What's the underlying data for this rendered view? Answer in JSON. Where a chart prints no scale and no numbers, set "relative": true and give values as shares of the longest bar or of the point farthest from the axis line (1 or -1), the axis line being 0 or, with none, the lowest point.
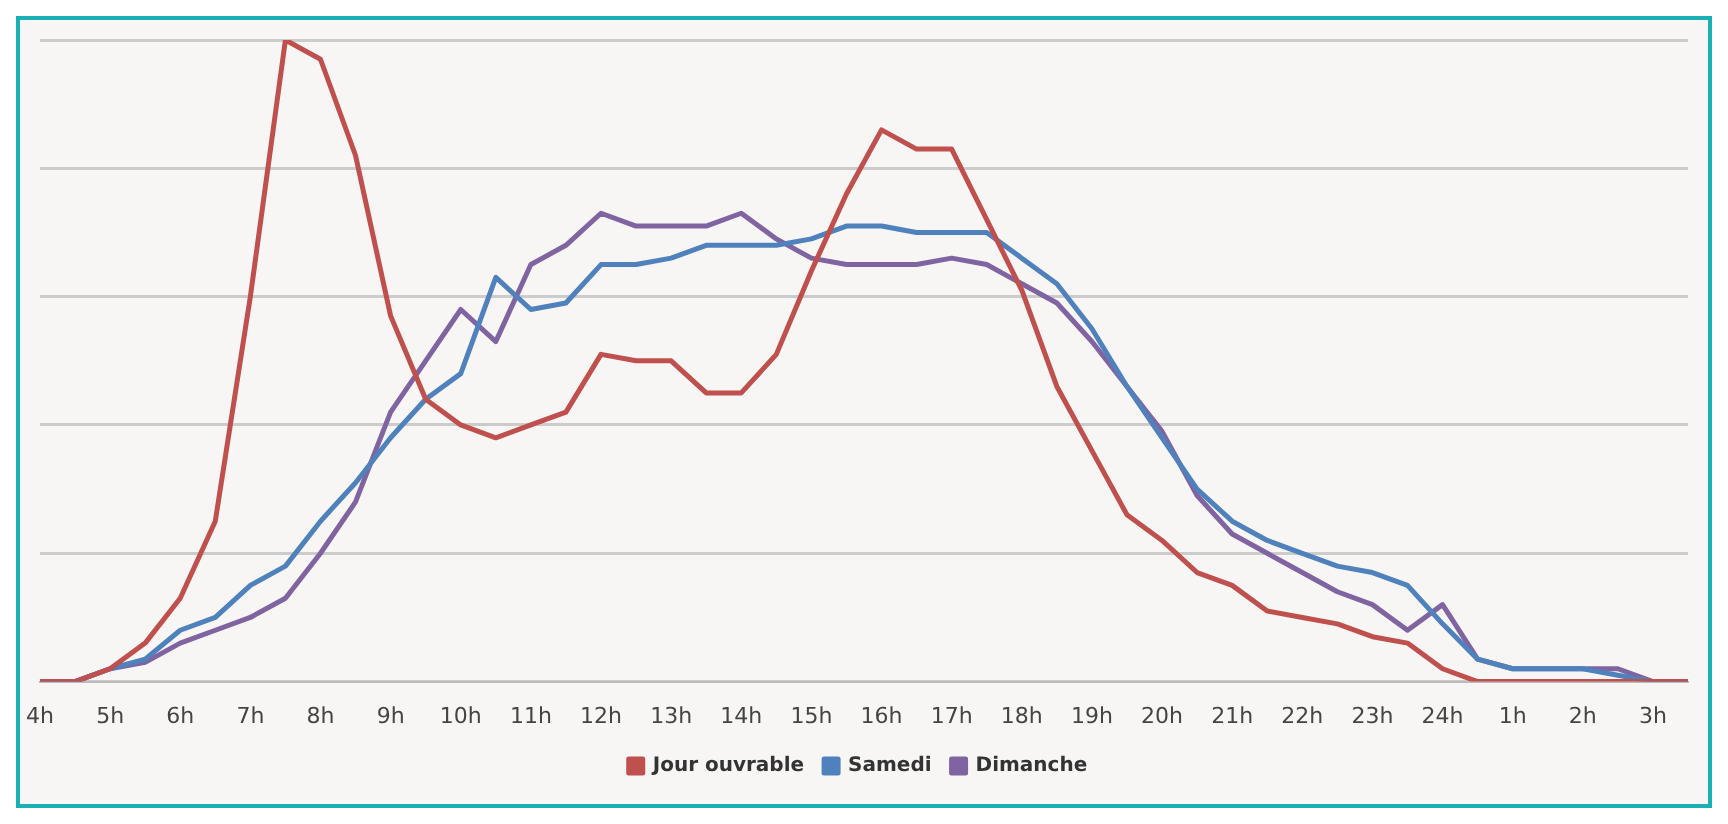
{
  "chart_data": {
    "type": "line",
    "relative": true,
    "grid": "y",
    "legend": "bottom",
    "marker": "none",
    "categories": [
      "4h",
      null,
      "5h",
      null,
      "6h",
      null,
      "7h",
      null,
      "8h",
      null,
      "9h",
      null,
      "10h",
      null,
      "11h",
      null,
      "12h",
      null,
      "13h",
      null,
      "14h",
      null,
      "15h",
      null,
      "16h",
      null,
      "17h",
      null,
      "18h",
      null,
      "19h",
      null,
      "20h",
      null,
      "21h",
      null,
      "22h",
      null,
      "23h",
      null,
      "24h",
      null,
      "1h",
      null,
      "2h",
      null,
      "3h",
      null
    ],
    "series": [
      {
        "name": "Jour ouvrable",
        "color": "#c0504d",
        "values": [
          0,
          0,
          0.02,
          0.06,
          0.13,
          0.25,
          0.6,
          1,
          0.97,
          0.82,
          0.57,
          0.44,
          0.4,
          0.38,
          0.4,
          0.42,
          0.51,
          0.5,
          0.5,
          0.45,
          0.45,
          0.51,
          0.64,
          0.76,
          0.86,
          0.83,
          0.83,
          0.72,
          0.61,
          0.46,
          0.36,
          0.26,
          0.22,
          0.17,
          0.15,
          0.11,
          0.1,
          0.09,
          0.07,
          0.06,
          0.02,
          0,
          0,
          0,
          0,
          0,
          0,
          0
        ]
      },
      {
        "name": "Samedi",
        "color": "#4f81bd",
        "values": [
          0,
          0,
          0.02,
          0.035,
          0.08,
          0.1,
          0.15,
          0.18,
          0.25,
          0.31,
          0.38,
          0.44,
          0.48,
          0.63,
          0.58,
          0.59,
          0.65,
          0.65,
          0.66,
          0.68,
          0.68,
          0.68,
          0.69,
          0.71,
          0.71,
          0.7,
          0.7,
          0.7,
          0.66,
          0.62,
          0.55,
          0.46,
          0.38,
          0.3,
          0.25,
          0.22,
          0.2,
          0.18,
          0.17,
          0.15,
          0.09,
          0.035,
          0.02,
          0.02,
          0.02,
          0.01,
          0,
          0
        ]
      },
      {
        "name": "Dimanche",
        "color": "#8064a2",
        "values": [
          0,
          0,
          0.02,
          0.03,
          0.06,
          0.08,
          0.1,
          0.13,
          0.2,
          0.28,
          0.42,
          0.5,
          0.58,
          0.53,
          0.65,
          0.68,
          0.73,
          0.71,
          0.71,
          0.71,
          0.73,
          0.69,
          0.66,
          0.65,
          0.65,
          0.65,
          0.66,
          0.65,
          0.62,
          0.59,
          0.53,
          0.46,
          0.39,
          0.29,
          0.23,
          0.2,
          0.17,
          0.14,
          0.12,
          0.08,
          0.12,
          0.035,
          0.02,
          0.02,
          0.02,
          0.02,
          0,
          0
        ]
      }
    ]
  }
}
